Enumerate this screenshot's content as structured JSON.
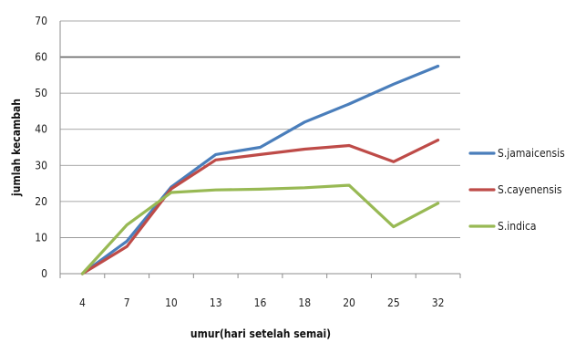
{
  "chart_data": {
    "type": "line",
    "title": "",
    "xlabel": "umur(hari setelah semai)",
    "ylabel": "jumlah kecambah",
    "categories": [
      "4",
      "7",
      "10",
      "13",
      "16",
      "18",
      "20",
      "25",
      "32"
    ],
    "ylim": [
      0,
      70
    ],
    "yticks": [
      "0",
      "10",
      "20",
      "30",
      "40",
      "50",
      "60",
      "70"
    ],
    "grid": true,
    "legend_position": "right",
    "series": [
      {
        "name": "S.jamaicensis",
        "color": "#4a7ebb",
        "values": [
          0,
          9,
          24,
          33,
          35,
          42,
          47,
          52.5,
          57.5
        ]
      },
      {
        "name": "S.cayenensis",
        "color": "#be4b48",
        "values": [
          0,
          7.5,
          23.5,
          31.5,
          33,
          34.5,
          35.5,
          31,
          37
        ]
      },
      {
        "name": "S.indica",
        "color": "#98b954",
        "values": [
          0,
          13.5,
          22.5,
          23.2,
          23.4,
          23.8,
          24.5,
          13,
          19.5
        ]
      }
    ]
  }
}
